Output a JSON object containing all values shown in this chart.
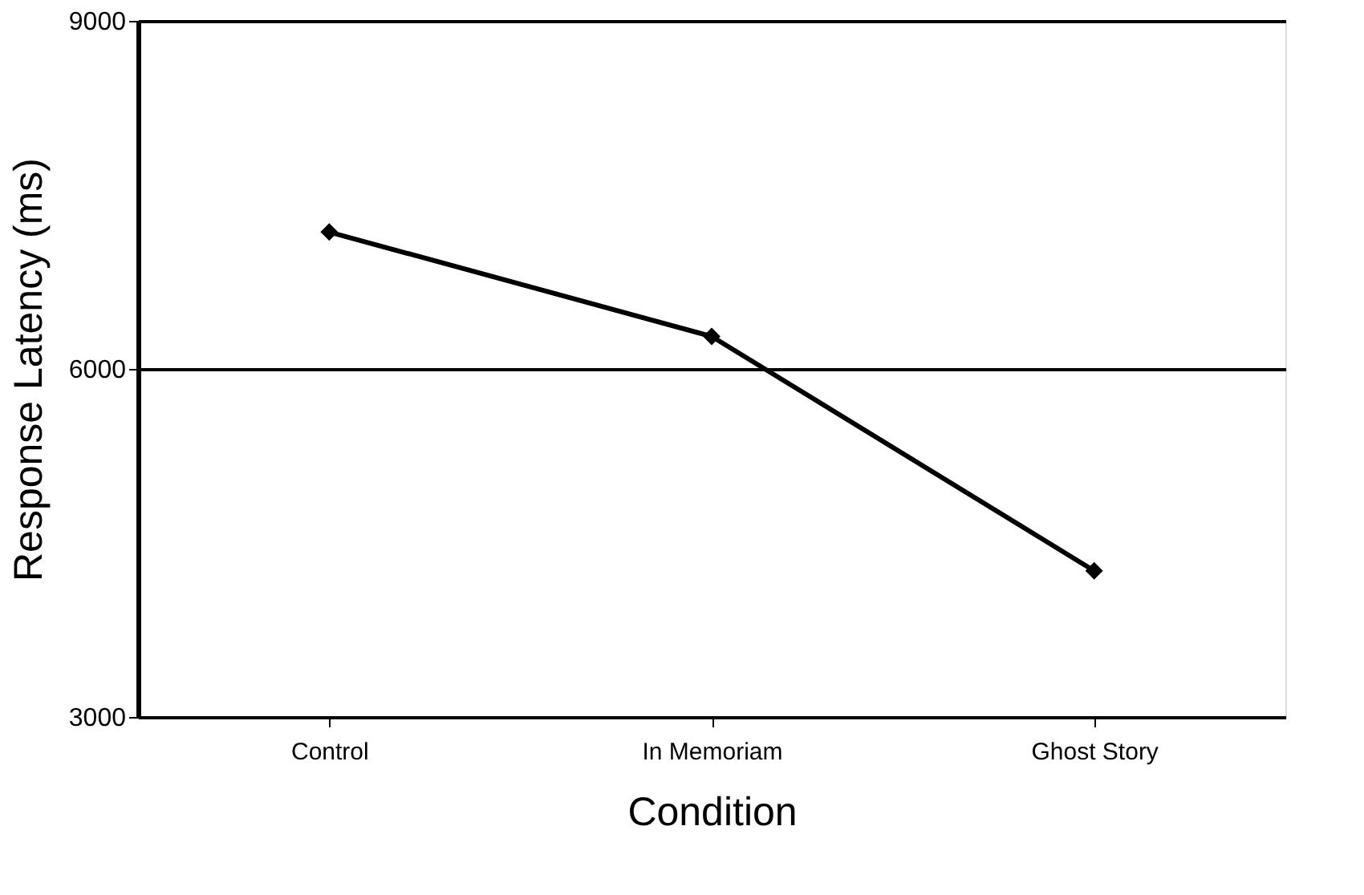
{
  "chart_data": {
    "type": "line",
    "xlabel": "Condition",
    "ylabel": "Response Latency (ms)",
    "categories": [
      "Control",
      "In Memoriam",
      "Ghost Story"
    ],
    "series": [
      {
        "color": "#000000",
        "values": [
          7180,
          6280,
          4260
        ]
      }
    ],
    "ylim": [
      3000,
      9000
    ],
    "yticks": [
      3000,
      6000,
      9000
    ],
    "grid": "y",
    "marker": "diamond",
    "line_style": "solid"
  }
}
